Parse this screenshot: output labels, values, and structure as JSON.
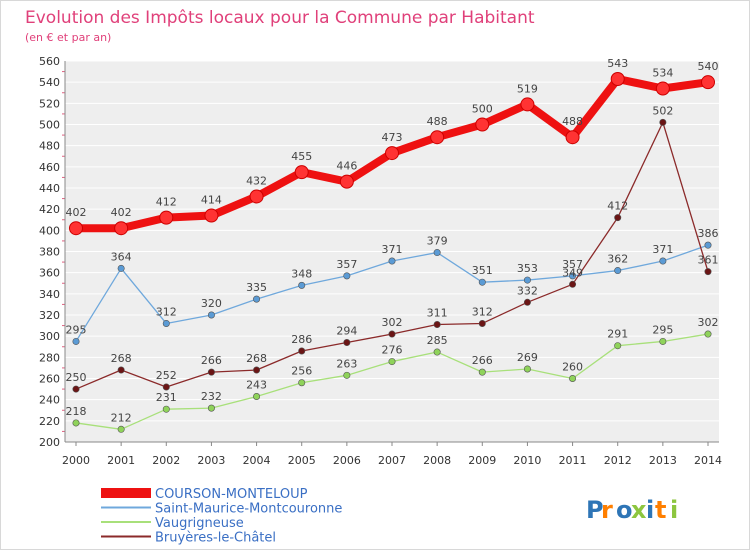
{
  "chart_data": {
    "type": "line",
    "title": "Evolution des Impôts locaux pour la Commune par Habitant",
    "subtitle": "(en € et par an)",
    "xlabel": "",
    "ylabel": "",
    "x": [
      "2000",
      "2001",
      "2002",
      "2003",
      "2004",
      "2005",
      "2006",
      "2007",
      "2008",
      "2009",
      "2010",
      "2011",
      "2012",
      "2013",
      "2014"
    ],
    "ylim": [
      200,
      560
    ],
    "yticks": [
      200,
      220,
      240,
      260,
      280,
      300,
      320,
      340,
      360,
      380,
      400,
      420,
      440,
      460,
      480,
      500,
      520,
      540,
      560
    ],
    "grid": "horizontal",
    "legend_position": "bottom-left",
    "series": [
      {
        "name": "COURSON-MONTELOUP",
        "color": "#ee1111",
        "marker_fill": "#ff3333",
        "emphasis": "thick",
        "values": [
          402,
          402,
          412,
          414,
          432,
          455,
          446,
          473,
          488,
          500,
          519,
          488,
          543,
          534,
          540
        ]
      },
      {
        "name": "Saint-Maurice-Montcouronne",
        "color": "#6fa8dc",
        "marker_fill": "#5b9bd5",
        "emphasis": "thin",
        "values": [
          295,
          364,
          312,
          320,
          335,
          348,
          357,
          371,
          379,
          351,
          353,
          357,
          362,
          371,
          386
        ]
      },
      {
        "name": "Vaugrigneuse",
        "color": "#a8e07a",
        "marker_fill": "#8fd35a",
        "emphasis": "thin",
        "values": [
          218,
          212,
          231,
          232,
          243,
          256,
          263,
          276,
          285,
          266,
          269,
          260,
          291,
          295,
          302
        ]
      },
      {
        "name": "Bruyères-le-Châtel",
        "color": "#8b2a2a",
        "marker_fill": "#6b1515",
        "emphasis": "thin",
        "values": [
          250,
          268,
          252,
          266,
          268,
          286,
          294,
          302,
          311,
          312,
          332,
          349,
          412,
          502,
          361
        ]
      }
    ]
  },
  "watermark": {
    "text": "Proxiti",
    "colors": [
      "#2e75b6",
      "#ff7f00",
      "#2e75b6",
      "#8dc63f",
      "#2e75b6",
      "#ff7f00",
      "#8dc63f"
    ]
  }
}
